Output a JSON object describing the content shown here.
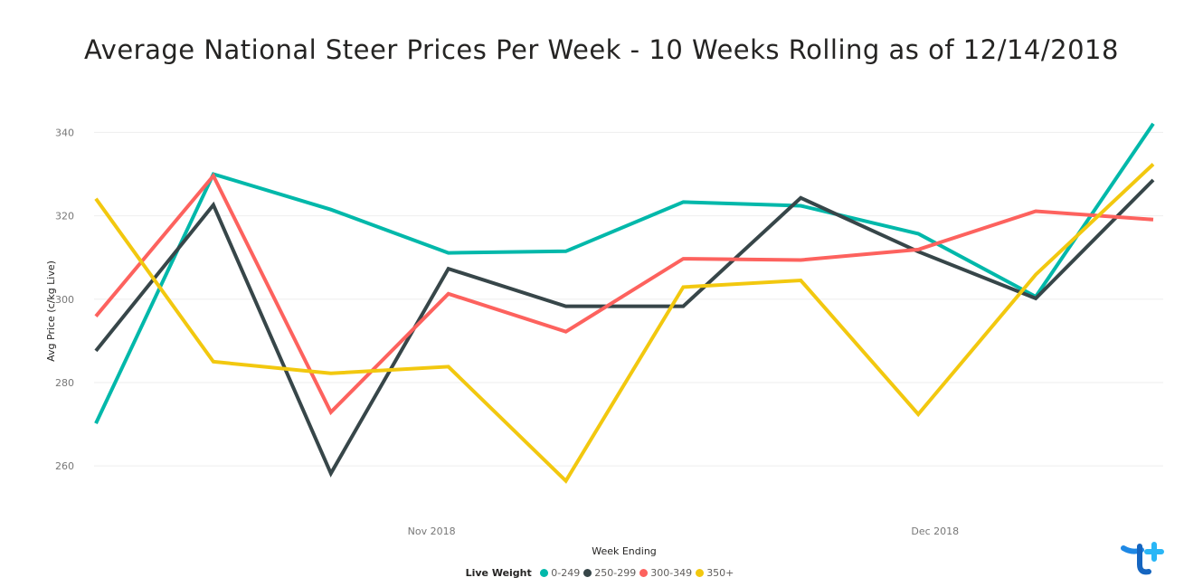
{
  "chart_data": {
    "type": "line",
    "title": "Average National Steer Prices Per Week - 10 Weeks Rolling as of 12/14/2018",
    "xlabel": "Week Ending",
    "ylabel": "Avg Price (c/kg Live)",
    "x": [
      "2018-10-12",
      "2018-10-19",
      "2018-10-26",
      "2018-11-02",
      "2018-11-09",
      "2018-11-16",
      "2018-11-23",
      "2018-11-30",
      "2018-12-07",
      "2018-12-14"
    ],
    "x_tick_labels": [
      "Nov 2018",
      "Dec 2018"
    ],
    "y_ticks": [
      260,
      280,
      300,
      320,
      340
    ],
    "ylim": [
      252,
      344
    ],
    "grid": true,
    "legend_title": "Live Weight",
    "legend_position": "bottom",
    "series": [
      {
        "name": "0-249",
        "color": "#01B8AA",
        "values": [
          270.2,
          330.0,
          321.5,
          311.1,
          311.5,
          323.3,
          322.4,
          315.7,
          300.6,
          342.1
        ]
      },
      {
        "name": "250-299",
        "color": "#374649",
        "values": [
          287.6,
          322.6,
          258.2,
          307.3,
          298.3,
          298.3,
          324.3,
          311.4,
          300.2,
          328.6
        ]
      },
      {
        "name": "300-349",
        "color": "#FD625E",
        "values": [
          295.9,
          329.6,
          272.9,
          301.3,
          292.2,
          309.7,
          309.4,
          311.9,
          321.1,
          319.1
        ]
      },
      {
        "name": "350+",
        "color": "#F2C80F",
        "values": [
          324.1,
          285.0,
          282.2,
          283.8,
          256.4,
          302.9,
          304.5,
          272.4,
          305.9,
          332.4
        ]
      }
    ]
  }
}
